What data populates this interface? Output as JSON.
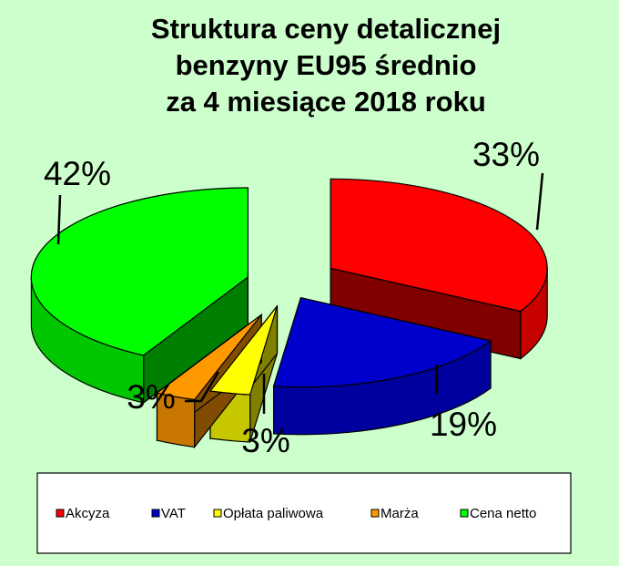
{
  "chart_data": {
    "type": "pie",
    "title": [
      "Struktura ceny detalicznej",
      "benzyny EU95 średnio",
      "za 4 miesiące 2018 roku"
    ],
    "slices": [
      {
        "label": "Akcyza",
        "value": 33,
        "value_label": "33%",
        "color": "#ff0000"
      },
      {
        "label": "VAT",
        "value": 19,
        "value_label": "19%",
        "color": "#0000cc"
      },
      {
        "label": "Opłata paliwowa",
        "value": 3,
        "value_label": "3%",
        "color": "#ffff00"
      },
      {
        "label": "Marża",
        "value": 3,
        "value_label": "3%",
        "color": "#ff9900"
      },
      {
        "label": "Cena netto",
        "value": 42,
        "value_label": "42%",
        "color": "#00ff00"
      }
    ],
    "legend_position": "bottom",
    "three_d": true,
    "exploded": true
  }
}
